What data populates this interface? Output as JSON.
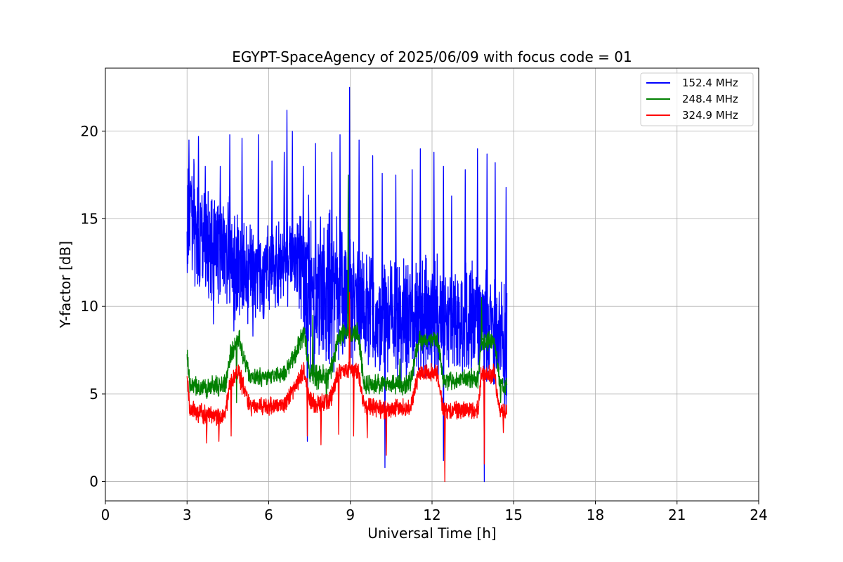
{
  "chart_data": {
    "type": "line",
    "title": "EGYPT-SpaceAgency of 2025/06/09 with focus code = 01",
    "xlabel": "Universal Time [h]",
    "ylabel": "Y-factor [dB]",
    "xlim": [
      0,
      24
    ],
    "ylim": [
      -1.1,
      23.6
    ],
    "xticks": [
      0,
      3,
      6,
      9,
      12,
      15,
      18,
      21,
      24
    ],
    "yticks": [
      0,
      5,
      10,
      15,
      20
    ],
    "grid": true,
    "legend_position": "top-right",
    "series": [
      {
        "name": "152.4 MHz",
        "color": "#0000ff",
        "profile": {
          "x": [
            3.0,
            3.2,
            3.5,
            4.0,
            4.5,
            5.0,
            5.5,
            6.0,
            6.5,
            7.0,
            7.3,
            7.6,
            8.0,
            8.5,
            8.9,
            9.3,
            9.8,
            10.3,
            10.8,
            11.3,
            11.8,
            12.3,
            12.8,
            13.3,
            13.8,
            14.2,
            14.5,
            14.75
          ],
          "low": [
            12.5,
            11.5,
            11.0,
            10.8,
            10.3,
            9.5,
            9.6,
            10.0,
            10.5,
            11.0,
            7.5,
            7.0,
            7.2,
            7.3,
            7.5,
            7.0,
            6.5,
            6.4,
            6.3,
            6.2,
            6.5,
            6.7,
            6.8,
            6.8,
            6.6,
            6.0,
            5.5,
            4.8
          ],
          "high": [
            18.5,
            17.5,
            16.8,
            16.0,
            15.5,
            14.5,
            14.3,
            14.0,
            14.5,
            15.0,
            15.5,
            15.0,
            14.5,
            14.0,
            13.5,
            13.0,
            12.5,
            12.0,
            12.3,
            12.0,
            12.5,
            12.0,
            11.8,
            12.0,
            11.5,
            11.5,
            11.0,
            10.5
          ]
        },
        "spikes": [
          {
            "x": 3.05,
            "y": 19.5
          },
          {
            "x": 3.4,
            "y": 19.7
          },
          {
            "x": 3.65,
            "y": 18.0
          },
          {
            "x": 4.2,
            "y": 18.0
          },
          {
            "x": 4.55,
            "y": 19.8
          },
          {
            "x": 5.0,
            "y": 19.6
          },
          {
            "x": 5.6,
            "y": 19.8
          },
          {
            "x": 6.1,
            "y": 18.3
          },
          {
            "x": 6.55,
            "y": 18.8
          },
          {
            "x": 6.65,
            "y": 21.2
          },
          {
            "x": 6.85,
            "y": 20.0
          },
          {
            "x": 7.25,
            "y": 18.0
          },
          {
            "x": 7.7,
            "y": 19.3
          },
          {
            "x": 8.3,
            "y": 18.8
          },
          {
            "x": 8.6,
            "y": 19.8
          },
          {
            "x": 8.95,
            "y": 22.5
          },
          {
            "x": 9.3,
            "y": 19.5
          },
          {
            "x": 9.8,
            "y": 18.6
          },
          {
            "x": 10.15,
            "y": 17.6
          },
          {
            "x": 10.65,
            "y": 17.5
          },
          {
            "x": 11.25,
            "y": 17.8
          },
          {
            "x": 11.55,
            "y": 19.0
          },
          {
            "x": 12.05,
            "y": 18.8
          },
          {
            "x": 12.4,
            "y": 18.0
          },
          {
            "x": 12.7,
            "y": 16.3
          },
          {
            "x": 13.2,
            "y": 17.8
          },
          {
            "x": 13.65,
            "y": 19.0
          },
          {
            "x": 14.0,
            "y": 18.7
          },
          {
            "x": 14.3,
            "y": 18.2
          },
          {
            "x": 14.7,
            "y": 16.8
          }
        ],
        "dips": [
          {
            "x": 3.95,
            "y": 9.0
          },
          {
            "x": 4.7,
            "y": 8.6
          },
          {
            "x": 5.4,
            "y": 8.3
          },
          {
            "x": 7.4,
            "y": 2.3
          },
          {
            "x": 8.3,
            "y": 6.5
          },
          {
            "x": 10.25,
            "y": 0.8
          },
          {
            "x": 12.4,
            "y": 1.2
          },
          {
            "x": 13.9,
            "y": 0.0
          },
          {
            "x": 14.7,
            "y": 4.0
          }
        ]
      },
      {
        "name": "248.4 MHz",
        "color": "#008000",
        "profile": {
          "x": [
            3.0,
            3.1,
            3.5,
            4.0,
            4.4,
            4.6,
            4.9,
            5.3,
            5.6,
            6.0,
            6.6,
            7.3,
            7.5,
            8.2,
            8.6,
            8.9,
            9.3,
            9.5,
            10.0,
            11.2,
            11.5,
            12.2,
            12.4,
            13.0,
            13.7,
            13.8,
            14.3,
            14.5,
            14.75
          ],
          "low": [
            7.0,
            5.0,
            4.8,
            5.0,
            5.0,
            6.8,
            7.6,
            5.5,
            5.5,
            5.6,
            5.7,
            7.9,
            5.4,
            5.5,
            7.8,
            8.0,
            7.8,
            5.1,
            5.0,
            5.1,
            7.6,
            7.7,
            5.3,
            5.4,
            5.4,
            7.6,
            7.6,
            5.0,
            5.0
          ],
          "high": [
            7.8,
            6.0,
            5.8,
            6.0,
            6.0,
            7.8,
            8.8,
            6.4,
            6.4,
            6.4,
            6.6,
            9.0,
            6.6,
            6.6,
            8.8,
            9.0,
            9.0,
            6.0,
            6.0,
            6.1,
            8.5,
            8.5,
            6.3,
            6.3,
            6.3,
            8.6,
            8.6,
            6.0,
            6.0
          ]
        },
        "spikes": [
          {
            "x": 8.9,
            "y": 17.5
          },
          {
            "x": 13.8,
            "y": 10.5
          },
          {
            "x": 7.6,
            "y": 9.5
          },
          {
            "x": 10.8,
            "y": 7.0
          }
        ],
        "dips": [
          {
            "x": 4.8,
            "y": 4.5
          },
          {
            "x": 8.1,
            "y": 4.3
          },
          {
            "x": 14.5,
            "y": 4.5
          }
        ]
      },
      {
        "name": "324.9 MHz",
        "color": "#ff0000",
        "profile": {
          "x": [
            3.0,
            3.1,
            3.5,
            4.0,
            4.4,
            4.6,
            4.9,
            5.3,
            5.6,
            6.0,
            6.6,
            7.3,
            7.5,
            8.2,
            8.6,
            8.9,
            9.3,
            9.5,
            10.0,
            11.2,
            11.5,
            12.2,
            12.4,
            13.0,
            13.7,
            13.8,
            14.3,
            14.5,
            14.75
          ],
          "low": [
            5.7,
            3.7,
            3.4,
            3.3,
            3.4,
            5.3,
            5.7,
            3.9,
            3.9,
            3.9,
            4.0,
            5.9,
            3.9,
            4.0,
            5.9,
            6.0,
            5.8,
            3.8,
            3.7,
            3.7,
            5.7,
            5.8,
            3.7,
            3.6,
            3.6,
            5.7,
            5.7,
            3.7,
            3.7
          ],
          "high": [
            6.4,
            4.6,
            4.4,
            4.2,
            4.2,
            6.2,
            6.8,
            4.7,
            4.7,
            4.8,
            4.8,
            6.8,
            5.0,
            5.0,
            6.8,
            6.8,
            6.7,
            4.7,
            4.6,
            4.6,
            6.6,
            6.6,
            4.5,
            4.5,
            4.5,
            6.6,
            6.6,
            4.4,
            4.4
          ]
        },
        "spikes": [
          {
            "x": 8.95,
            "y": 10.8
          }
        ],
        "dips": [
          {
            "x": 3.7,
            "y": 2.2
          },
          {
            "x": 4.15,
            "y": 2.3
          },
          {
            "x": 4.6,
            "y": 2.6
          },
          {
            "x": 7.4,
            "y": 2.6
          },
          {
            "x": 7.9,
            "y": 2.1
          },
          {
            "x": 8.55,
            "y": 2.7
          },
          {
            "x": 9.1,
            "y": 2.6
          },
          {
            "x": 9.6,
            "y": 2.5
          },
          {
            "x": 10.3,
            "y": 1.5
          },
          {
            "x": 12.45,
            "y": 0.0
          },
          {
            "x": 13.9,
            "y": 1.0
          },
          {
            "x": 14.6,
            "y": 2.8
          }
        ]
      }
    ]
  }
}
